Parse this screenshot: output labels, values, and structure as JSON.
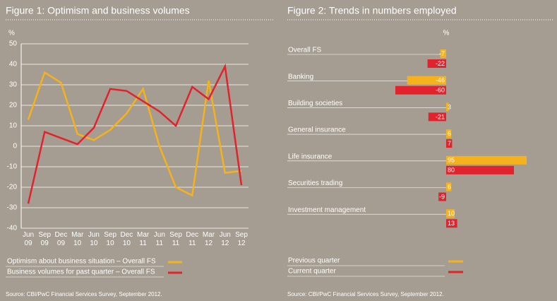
{
  "chart_data": [
    {
      "type": "line",
      "title": "Figure 1: Optimism and business volumes",
      "y_label": "%",
      "categories": [
        "Jun 09",
        "Sep 09",
        "Dec 09",
        "Mar 10",
        "Jun 10",
        "Sep 10",
        "Dec 10",
        "Mar 11",
        "Jun 11",
        "Sep 11",
        "Dec 11",
        "Mar 12",
        "Jun 12",
        "Sep 12"
      ],
      "series": [
        {
          "name": "Optimism about business situation – Overall FS",
          "color": "#f5b21c",
          "values": [
            13,
            36,
            31,
            6,
            3,
            8,
            16,
            28,
            0,
            -20,
            -24,
            32,
            -13,
            -12
          ]
        },
        {
          "name": "Business volumes for past quarter – Overall FS",
          "color": "#e0232c",
          "values": [
            -28,
            7,
            4,
            1,
            9,
            28,
            27,
            22,
            17,
            10,
            29,
            23,
            39,
            -19
          ]
        }
      ],
      "ylim": [
        -40,
        50
      ],
      "yticks": [
        -40,
        -30,
        -20,
        -10,
        0,
        10,
        20,
        30,
        40,
        50
      ],
      "grid": true,
      "source": "Source: CBI/PwC Financial Services Survey, September 2012."
    },
    {
      "type": "hbar",
      "title": "Figure 2: Trends in numbers employed",
      "x_label": "%",
      "categories": [
        "Overall FS",
        "Banking",
        "Building societies",
        "General insurance",
        "Life insurance",
        "Securities trading",
        "Investment management"
      ],
      "series": [
        {
          "name": "Previous quarter",
          "color": "#f5b21c",
          "values": [
            -7,
            -46,
            3,
            6,
            95,
            6,
            10
          ]
        },
        {
          "name": "Current quarter",
          "color": "#e0232c",
          "values": [
            -22,
            -60,
            -21,
            7,
            80,
            -9,
            13
          ]
        }
      ],
      "xlim": [
        -65,
        100
      ],
      "source": "Source: CBI/PwC Financial Services Survey, September 2012."
    }
  ]
}
